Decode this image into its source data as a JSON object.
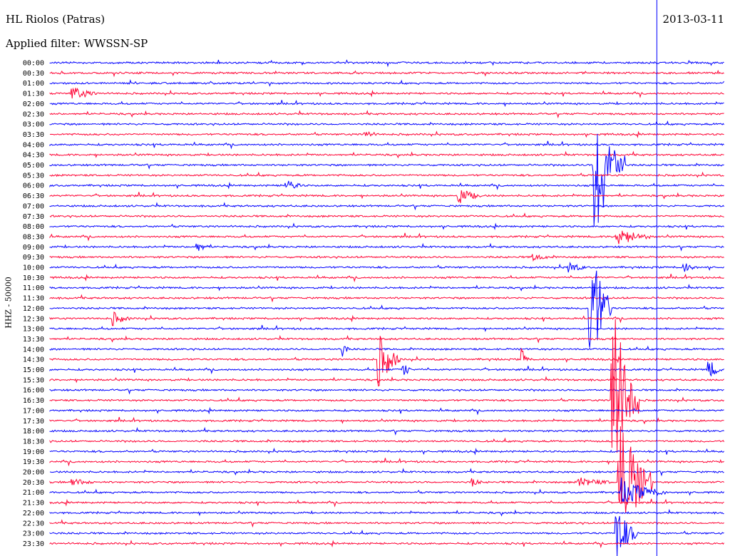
{
  "header": {
    "station": "HL Riolos (Patras)",
    "date": "2013-03-11",
    "filter": "Applied filter: WWSSN-SP"
  },
  "axis_label": "HHZ - 50000",
  "colors": {
    "trace_a": "#0000ff",
    "trace_b": "#ff0033",
    "background": "#ffffff",
    "marker": "#0000ff"
  },
  "chart_data": {
    "type": "line",
    "title": "HL Riolos (Patras)",
    "subtitle": "Applied filter: WWSSN-SP",
    "ylabel": "HHZ - 50000",
    "xlabel": "",
    "y_tick_labels": [
      "00:00",
      "00:30",
      "01:00",
      "01:30",
      "02:00",
      "02:30",
      "03:00",
      "03:30",
      "04:00",
      "04:30",
      "05:00",
      "05:30",
      "06:00",
      "06:30",
      "07:00",
      "07:30",
      "08:00",
      "08:30",
      "09:00",
      "09:30",
      "10:00",
      "10:30",
      "11:00",
      "11:30",
      "12:00",
      "12:30",
      "13:00",
      "13:30",
      "14:00",
      "14:30",
      "15:00",
      "15:30",
      "16:00",
      "16:30",
      "17:00",
      "17:30",
      "18:00",
      "18:30",
      "19:00",
      "19:30",
      "20:00",
      "20:30",
      "21:00",
      "21:30",
      "22:00",
      "22:30",
      "23:00",
      "23:30"
    ],
    "row_minutes": 30,
    "color_cycle": [
      "#0000ff",
      "#ff0033"
    ],
    "grid": false,
    "event_marker_minute": 27,
    "events": [
      {
        "row": "01:30",
        "minute": 1.0,
        "amp": 0.7,
        "dur": 1.2
      },
      {
        "row": "03:30",
        "minute": 14.0,
        "amp": 0.4,
        "dur": 0.6
      },
      {
        "row": "06:00",
        "minute": 10.5,
        "amp": 0.6,
        "dur": 0.8
      },
      {
        "row": "06:30",
        "minute": 18.2,
        "amp": 0.8,
        "dur": 1.0
      },
      {
        "row": "09:00",
        "minute": 6.5,
        "amp": 0.6,
        "dur": 0.6
      },
      {
        "row": "09:30",
        "minute": 21.5,
        "amp": 0.4,
        "dur": 0.8
      },
      {
        "row": "10:00",
        "minute": 23.0,
        "amp": 0.7,
        "dur": 0.8
      },
      {
        "row": "10:00",
        "minute": 28.2,
        "amp": 0.6,
        "dur": 0.6
      },
      {
        "row": "12:30",
        "minute": 2.8,
        "amp": 0.7,
        "dur": 0.8
      },
      {
        "row": "14:00",
        "minute": 13.0,
        "amp": 0.8,
        "dur": 0.3
      },
      {
        "row": "14:30",
        "minute": 14.6,
        "amp": 3.0,
        "dur": 1.0
      },
      {
        "row": "14:30",
        "minute": 21.0,
        "amp": 1.1,
        "dur": 0.3
      },
      {
        "row": "15:00",
        "minute": 15.7,
        "amp": 0.9,
        "dur": 0.4
      },
      {
        "row": "15:00",
        "minute": 29.3,
        "amp": 1.1,
        "dur": 0.6
      },
      {
        "row": "20:30",
        "minute": 1.0,
        "amp": 0.4,
        "dur": 1.0
      },
      {
        "row": "20:30",
        "minute": 18.8,
        "amp": 0.5,
        "dur": 0.4
      },
      {
        "row": "20:30",
        "minute": 23.5,
        "amp": 0.5,
        "dur": 1.5
      },
      {
        "row": "05:00",
        "minute": 24.2,
        "amp": 8.0,
        "dur": 1.4
      },
      {
        "row": "08:30",
        "minute": 25.2,
        "amp": 1.0,
        "dur": 1.5
      },
      {
        "row": "12:00",
        "minute": 24.0,
        "amp": 8.0,
        "dur": 1.0
      },
      {
        "row": "16:30",
        "minute": 25.0,
        "amp": 12.0,
        "dur": 1.2
      },
      {
        "row": "20:30",
        "minute": 25.3,
        "amp": 8.0,
        "dur": 1.5
      },
      {
        "row": "21:00",
        "minute": 25.4,
        "amp": 1.4,
        "dur": 2.0
      },
      {
        "row": "23:00",
        "minute": 25.2,
        "amp": 3.0,
        "dur": 1.0
      }
    ]
  }
}
